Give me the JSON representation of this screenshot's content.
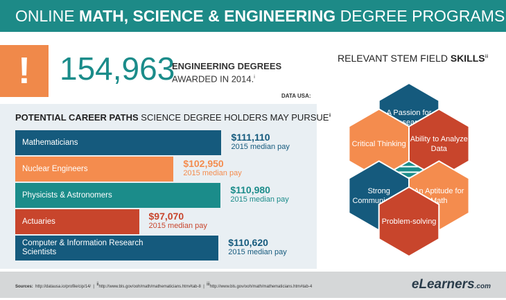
{
  "header": {
    "title_prefix": "ONLINE ",
    "title_bold": "MATH, SCIENCE & ENGINEERING",
    "title_suffix": " DEGREE PROGRAMS"
  },
  "stat": {
    "icon": "!",
    "number": "154,963",
    "line1": "ENGINEERING DEGREES",
    "line2": "AWARDED IN 2014.",
    "sup": "i",
    "source": "DATA USA:"
  },
  "chart_data": {
    "type": "bar",
    "orientation": "horizontal",
    "title_bold": "POTENTIAL CAREER PATHS",
    "title_rest": " SCIENCE DEGREE HOLDERS MAY PURSUE",
    "title_sup": "ii",
    "categories": [
      "Mathematicians",
      "Nuclear Engineers",
      "Physicists & Astronomers",
      "Actuaries",
      "Computer & Information Research Scientists"
    ],
    "values": [
      111110,
      102950,
      110980,
      97070,
      110620
    ],
    "value_labels": [
      "$111,110",
      "$102,950",
      "$110,980",
      "$97,070",
      "$110,620"
    ],
    "value_note": "2015 median pay",
    "colors": [
      "#155a7d",
      "#f48c4e",
      "#1b8c8a",
      "#c8452c",
      "#155a7d"
    ],
    "xlim": [
      76000,
      112000
    ]
  },
  "skills": {
    "title": "RELEVANT STEM FIELD ",
    "title_bold": "SKILLS",
    "sup": "iii",
    "items": [
      "A Passion for Research",
      "Critical Thinking",
      "Ability to Analyze Data",
      "Strong Communication",
      "An Aptitude for Math",
      "Problem-solving"
    ]
  },
  "footer": {
    "label": "Sources:",
    "sources": [
      "http://datausa.io/profile/cip/14/",
      "http://www.bls.gov/ooh/math/mathematicians.htm#tab-8",
      "http://www.bls.gov/ooh/math/mathematicians.htm#tab-4"
    ],
    "sups": [
      "ii",
      "iii"
    ],
    "logo": "eLearners",
    ".com": ".com"
  }
}
